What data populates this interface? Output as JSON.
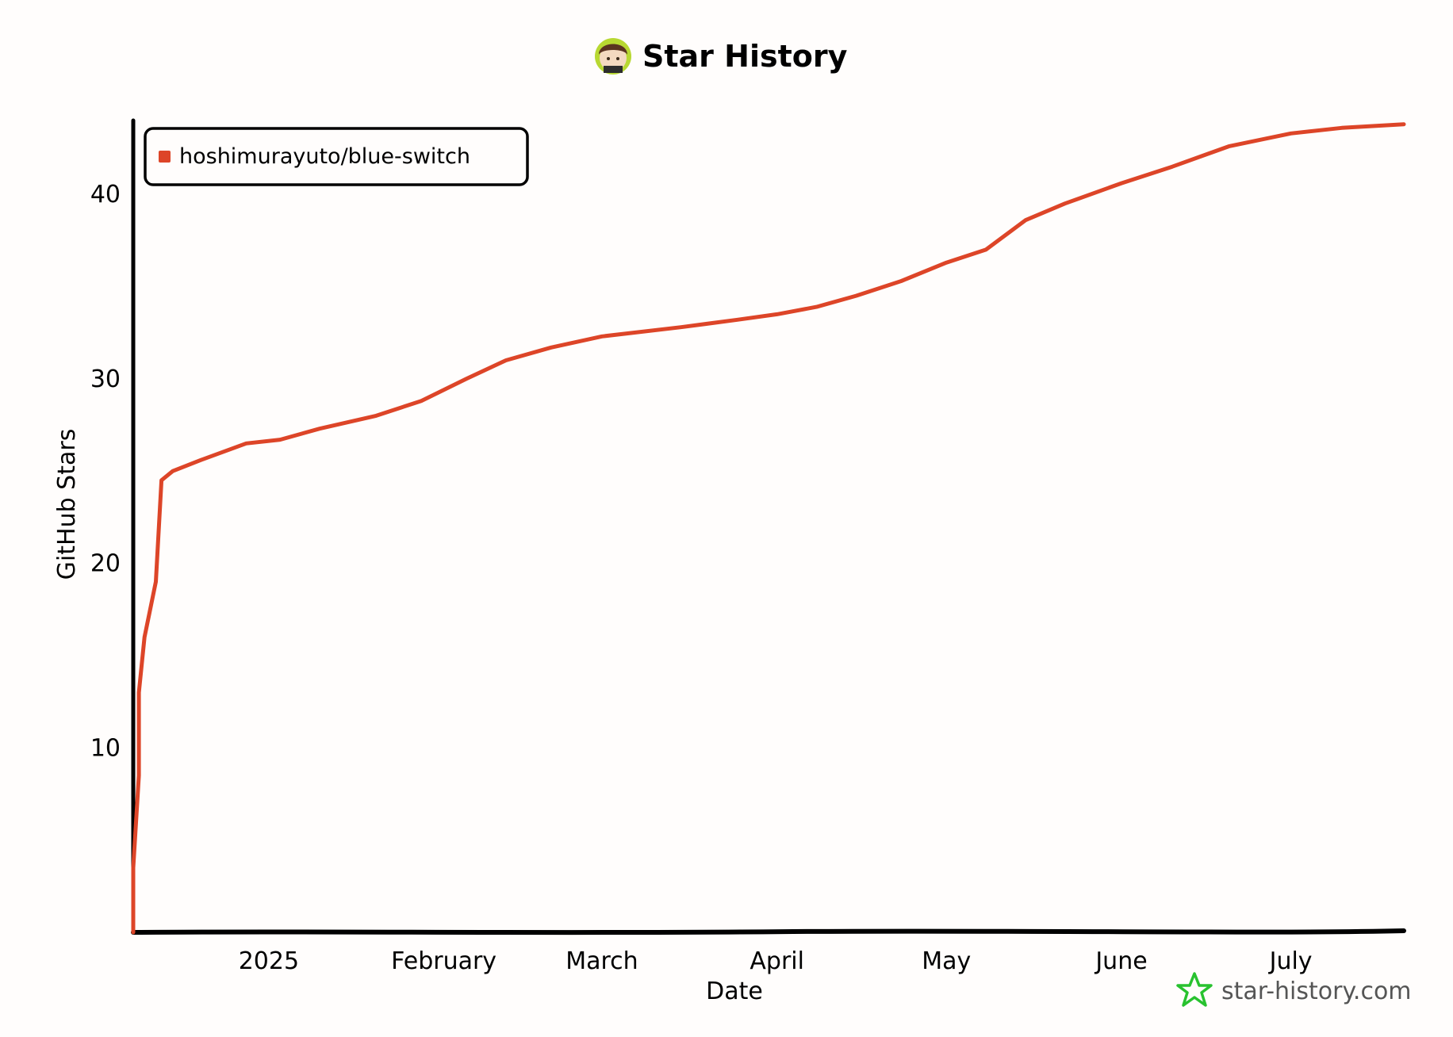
{
  "chart_data": {
    "type": "line",
    "title": "Star History",
    "xlabel": "Date",
    "ylabel": "GitHub Stars",
    "x_ticks": [
      "2025",
      "February",
      "March",
      "April",
      "May",
      "June",
      "July"
    ],
    "x_tick_dates": [
      "2025-01-01",
      "2025-02-01",
      "2025-03-01",
      "2025-04-01",
      "2025-05-01",
      "2025-06-01",
      "2025-07-01"
    ],
    "xlim": [
      "2024-12-08",
      "2025-07-21"
    ],
    "y_ticks": [
      10,
      20,
      30,
      40
    ],
    "ylim": [
      0,
      44
    ],
    "grid": false,
    "legend_position": "top-left",
    "series": [
      {
        "name": "hoshimurayuto/blue-switch",
        "color": "#dd4528",
        "points": [
          [
            "2024-12-08",
            0
          ],
          [
            "2024-12-08",
            3.5
          ],
          [
            "2024-12-09",
            8.5
          ],
          [
            "2024-12-09",
            13
          ],
          [
            "2024-12-10",
            16
          ],
          [
            "2024-12-12",
            19
          ],
          [
            "2024-12-13",
            24.5
          ],
          [
            "2024-12-15",
            25
          ],
          [
            "2024-12-20",
            25.6
          ],
          [
            "2024-12-28",
            26.5
          ],
          [
            "2025-01-03",
            26.7
          ],
          [
            "2025-01-10",
            27.3
          ],
          [
            "2025-01-20",
            28.0
          ],
          [
            "2025-01-28",
            28.8
          ],
          [
            "2025-02-05",
            30.0
          ],
          [
            "2025-02-12",
            31.0
          ],
          [
            "2025-02-20",
            31.7
          ],
          [
            "2025-03-01",
            32.3
          ],
          [
            "2025-03-15",
            32.8
          ],
          [
            "2025-03-25",
            33.2
          ],
          [
            "2025-04-01",
            33.5
          ],
          [
            "2025-04-08",
            33.9
          ],
          [
            "2025-04-15",
            34.5
          ],
          [
            "2025-04-23",
            35.3
          ],
          [
            "2025-05-01",
            36.3
          ],
          [
            "2025-05-08",
            37.0
          ],
          [
            "2025-05-15",
            38.6
          ],
          [
            "2025-05-22",
            39.5
          ],
          [
            "2025-06-01",
            40.6
          ],
          [
            "2025-06-10",
            41.5
          ],
          [
            "2025-06-20",
            42.6
          ],
          [
            "2025-07-01",
            43.3
          ],
          [
            "2025-07-10",
            43.6
          ],
          [
            "2025-07-21",
            43.8
          ]
        ]
      }
    ]
  },
  "footer": {
    "brand_text": "star-history.com",
    "brand_color": "#28c22f",
    "icon": "star-outline-icon"
  },
  "header": {
    "avatar_icon": "user-avatar-icon"
  }
}
